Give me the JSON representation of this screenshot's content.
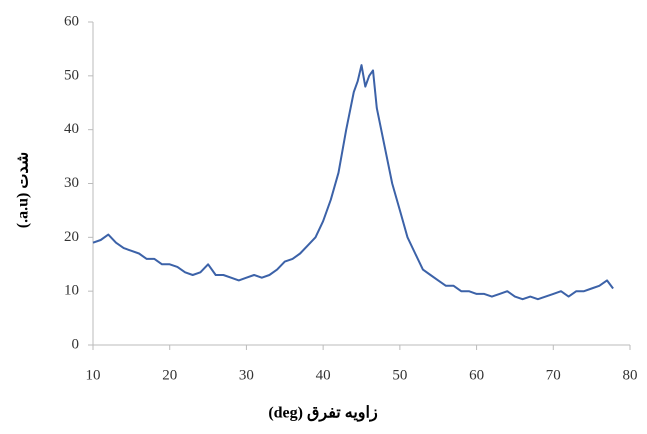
{
  "chart_data": {
    "type": "line",
    "x_label": "زاویه تفرق (deg)",
    "y_label": "شدت (a.u.)",
    "x": [
      10,
      11,
      12,
      13,
      14,
      15,
      16,
      17,
      18,
      19,
      20,
      21,
      22,
      23,
      24,
      25,
      26,
      27,
      28,
      29,
      30,
      31,
      32,
      33,
      34,
      35,
      36,
      37,
      38,
      39,
      40,
      41,
      42,
      43,
      44,
      44.5,
      45,
      45.5,
      46,
      46.5,
      47,
      48,
      49,
      50,
      51,
      52,
      53,
      54,
      55,
      56,
      57,
      58,
      59,
      60,
      61,
      62,
      63,
      64,
      65,
      66,
      67,
      68,
      69,
      70,
      71,
      72,
      73,
      74,
      75,
      76,
      77,
      77.8
    ],
    "series": [
      {
        "color": "#3c62a8",
        "values": [
          19,
          19.5,
          20.5,
          19,
          18,
          17.5,
          17,
          16,
          16,
          15,
          15,
          14.5,
          13.5,
          13,
          13.5,
          15,
          13,
          13,
          12.5,
          12,
          12.5,
          13,
          12.5,
          13,
          14,
          15.5,
          16,
          17,
          18.5,
          20,
          23,
          27,
          32,
          40,
          47,
          49,
          52,
          48,
          50,
          51,
          44,
          37,
          30,
          25,
          20,
          17,
          14,
          13,
          12,
          11,
          11,
          10,
          10,
          9.5,
          9.5,
          9,
          9.5,
          10,
          9,
          8.5,
          9,
          8.5,
          9,
          9.5,
          10,
          9,
          10,
          10,
          10.5,
          11,
          12,
          10.5
        ]
      }
    ],
    "xlim": [
      10,
      80
    ],
    "xticks": [
      10,
      20,
      30,
      40,
      50,
      60,
      70,
      80
    ],
    "ylim": [
      0,
      60
    ],
    "yticks": [
      0,
      10,
      20,
      30,
      40,
      50,
      60
    ]
  }
}
